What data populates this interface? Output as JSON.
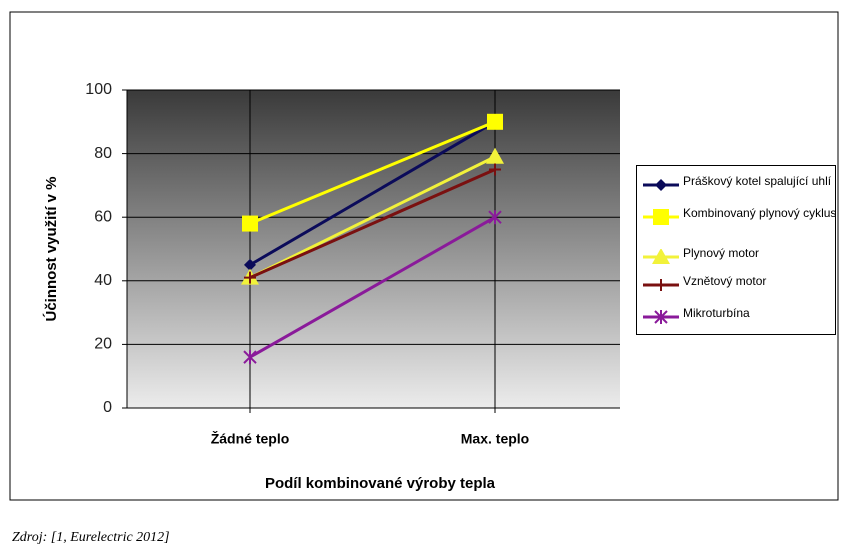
{
  "chart_data": {
    "type": "line",
    "y_label": "Účinnost využití v %",
    "x_label": "Podíl kombinované výroby tepla",
    "categories": [
      "Žádné teplo",
      "Max. teplo"
    ],
    "series": [
      {
        "name": "Práškový kotel spalující uhlí",
        "color": "#0b0b5a",
        "marker": "diamond",
        "values": [
          45,
          90
        ]
      },
      {
        "name": "Kombinovaný plynový cyklus",
        "color": "#ffff00",
        "marker": "square",
        "values": [
          58,
          90
        ]
      },
      {
        "name": "Plynový motor",
        "color": "#f2f23a",
        "marker": "triangle",
        "values": [
          41,
          79
        ]
      },
      {
        "name": "Vznětový motor",
        "color": "#7a1010",
        "marker": "plus",
        "values": [
          41,
          75
        ]
      },
      {
        "name": "Mikroturbína",
        "color": "#8a1a9a",
        "marker": "star",
        "values": [
          16,
          60
        ]
      }
    ],
    "ylim": [
      0,
      100
    ],
    "yticks": [
      0,
      20,
      40,
      60,
      80,
      100
    ],
    "grid": true,
    "source": "Zdroj: [1, Eurelectric 2012]"
  }
}
